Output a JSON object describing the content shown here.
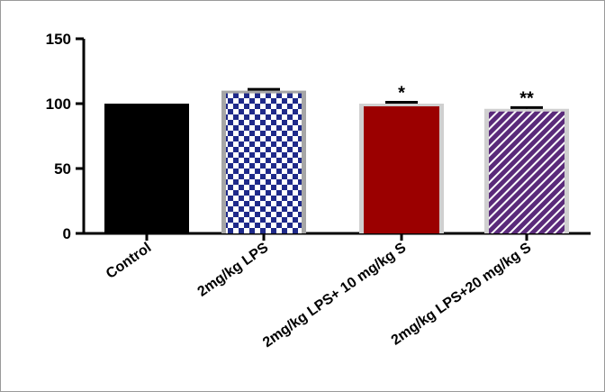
{
  "chart_data": {
    "type": "bar",
    "title": "",
    "xlabel": "",
    "ylabel": "",
    "ylim": [
      0,
      150
    ],
    "yticks": [
      0,
      50,
      100,
      150
    ],
    "categories": [
      "Control",
      "2mg/kg LPS",
      "2mg/kg LPS+ 10 mg/kg S",
      "2mg/kg LPS+20 mg/kg S"
    ],
    "values": [
      100,
      110,
      100,
      96
    ],
    "errors": [
      0,
      1,
      1,
      1
    ],
    "significance": [
      "",
      "",
      "*",
      "**"
    ],
    "bar_styles": [
      {
        "fill": "#000000",
        "pattern": "solid"
      },
      {
        "fill": "#1f2a8a",
        "pattern": "checker"
      },
      {
        "fill": "#9b0000",
        "pattern": "solid"
      },
      {
        "fill": "#5a2a7a",
        "pattern": "diagonal-stripes"
      }
    ],
    "grid": false,
    "legend": "none"
  }
}
